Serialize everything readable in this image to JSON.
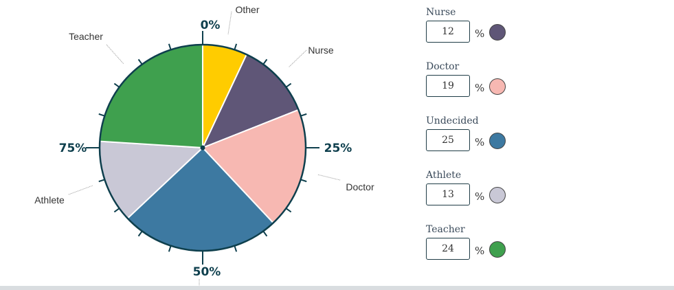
{
  "chart_data": {
    "type": "pie",
    "start": "top",
    "direction": "clockwise",
    "slices": [
      {
        "label": "Other",
        "value": 7,
        "color": "#ffcc00"
      },
      {
        "label": "Nurse",
        "value": 12,
        "color": "#5f5677"
      },
      {
        "label": "Doctor",
        "value": 19,
        "color": "#f7b8b2"
      },
      {
        "label": "Undecided",
        "value": 25,
        "color": "#3d79a1"
      },
      {
        "label": "Athlete",
        "value": 13,
        "color": "#c9c8d6"
      },
      {
        "label": "Teacher",
        "value": 24,
        "color": "#3fa04e"
      }
    ],
    "axis_labels": [
      "0%",
      "25%",
      "50%",
      "75%"
    ],
    "tick_step_percent": 5,
    "outline_color": "#0e3f4d"
  },
  "inputs": [
    {
      "label": "Nurse",
      "value": "12",
      "unit": "%",
      "color": "#5f5677"
    },
    {
      "label": "Doctor",
      "value": "19",
      "unit": "%",
      "color": "#f7b8b2"
    },
    {
      "label": "Undecided",
      "value": "25",
      "unit": "%",
      "color": "#3d79a1"
    },
    {
      "label": "Athlete",
      "value": "13",
      "unit": "%",
      "color": "#c9c8d6"
    },
    {
      "label": "Teacher",
      "value": "24",
      "unit": "%",
      "color": "#3fa04e"
    }
  ]
}
